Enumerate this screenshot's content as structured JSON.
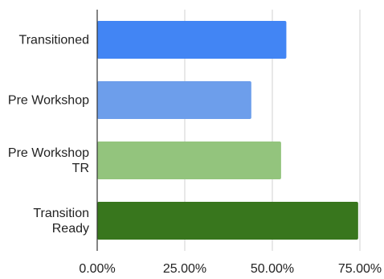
{
  "chart_data": {
    "type": "bar",
    "orientation": "horizontal",
    "categories": [
      [
        "Transitioned"
      ],
      [
        "Pre Workshop"
      ],
      [
        "Pre Workshop",
        "TR"
      ],
      [
        "Transition",
        "Ready"
      ]
    ],
    "values": [
      0.54,
      0.44,
      0.525,
      0.745
    ],
    "colors": [
      "#4285f4",
      "#6d9eeb",
      "#93c47d",
      "#38761d"
    ],
    "xlim": [
      0,
      0.75
    ],
    "xticks": [
      0,
      0.25,
      0.5,
      0.75
    ],
    "xtick_labels": [
      "0.00%",
      "25.00%",
      "50.00%",
      "75.00%"
    ],
    "grid": true,
    "title": "",
    "xlabel": "",
    "ylabel": ""
  }
}
